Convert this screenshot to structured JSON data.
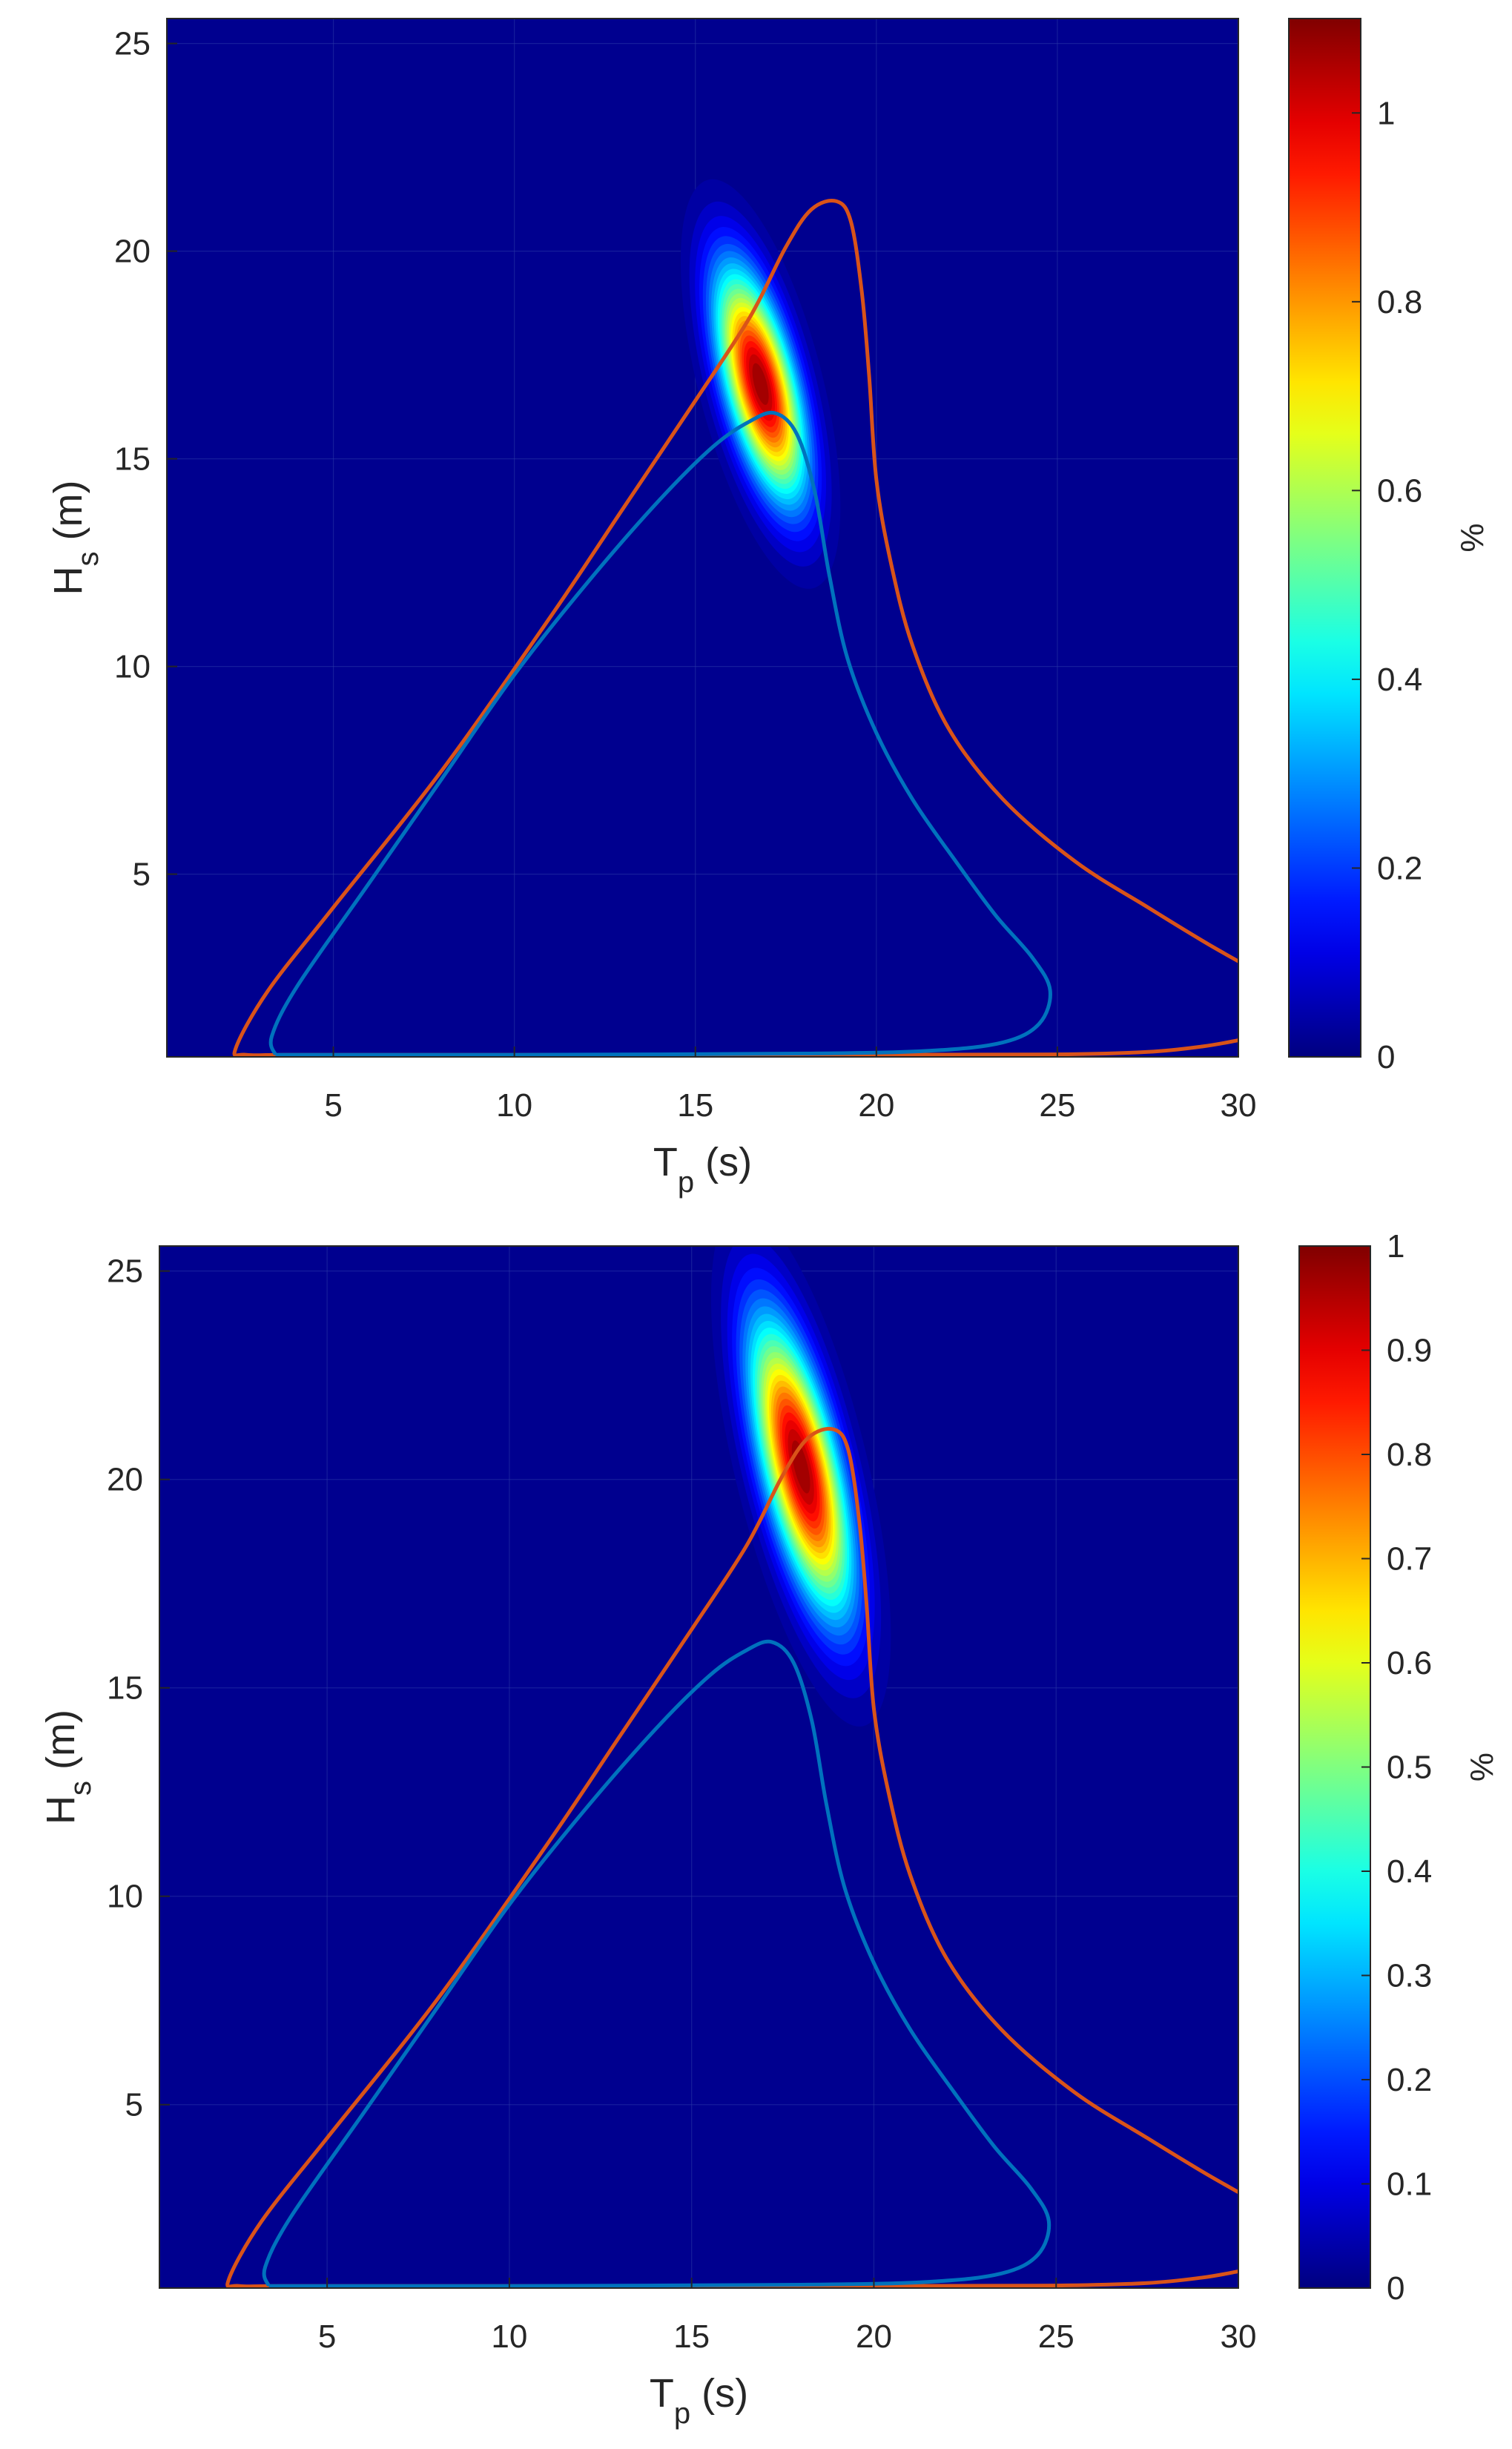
{
  "chart_data": [
    {
      "type": "heatmap",
      "colormap": "jet",
      "background_color": "#00008f",
      "xlabel": {
        "main": "T",
        "sub": "p",
        "unit": " (s)"
      },
      "ylabel": {
        "main": "H",
        "sub": "s",
        "unit": " (m)"
      },
      "xlim": [
        0.4,
        30
      ],
      "ylim": [
        0.6,
        25.6
      ],
      "xticks": [
        5,
        10,
        15,
        20,
        25,
        30
      ],
      "yticks": [
        5,
        10,
        15,
        20,
        25
      ],
      "colorbar": {
        "label": "%",
        "range": [
          0,
          1.1
        ],
        "ticks": [
          0,
          0.2,
          0.4,
          0.6,
          0.8,
          1
        ]
      },
      "peak": {
        "tp": 16.8,
        "hs": 16.8,
        "value": 1.1,
        "sigma_tp": 0.85,
        "sigma_hs": 1.9,
        "correlation": 0.6
      },
      "series": [
        {
          "color": "#d95319",
          "points": [
            [
              30.0,
              1.0
            ],
            [
              29.0,
              0.85
            ],
            [
              27.5,
              0.72
            ],
            [
              25.0,
              0.66
            ],
            [
              20.0,
              0.65
            ],
            [
              10.0,
              0.65
            ],
            [
              4.0,
              0.65
            ],
            [
              2.6,
              0.65
            ],
            [
              2.3,
              0.8
            ],
            [
              3.2,
              2.2
            ],
            [
              5.0,
              4.2
            ],
            [
              8.0,
              7.5
            ],
            [
              11.0,
              11.2
            ],
            [
              13.0,
              13.8
            ],
            [
              15.0,
              16.4
            ],
            [
              16.5,
              18.4
            ],
            [
              17.5,
              20.1
            ],
            [
              18.2,
              21.0
            ],
            [
              18.9,
              21.2
            ],
            [
              19.3,
              20.7
            ],
            [
              19.6,
              19.0
            ],
            [
              19.8,
              17.0
            ],
            [
              20.0,
              14.5
            ],
            [
              20.4,
              12.5
            ],
            [
              21.0,
              10.5
            ],
            [
              22.0,
              8.5
            ],
            [
              23.5,
              6.8
            ],
            [
              25.5,
              5.3
            ],
            [
              27.5,
              4.2
            ],
            [
              29.0,
              3.4
            ],
            [
              30.0,
              2.9
            ]
          ]
        },
        {
          "color": "#0072bd",
          "points": [
            [
              3.4,
              0.65
            ],
            [
              3.3,
              1.1
            ],
            [
              4.0,
              2.3
            ],
            [
              6.0,
              4.8
            ],
            [
              8.0,
              7.3
            ],
            [
              10.0,
              9.8
            ],
            [
              12.0,
              12.0
            ],
            [
              14.0,
              14.0
            ],
            [
              15.5,
              15.3
            ],
            [
              16.5,
              15.9
            ],
            [
              17.2,
              16.1
            ],
            [
              17.8,
              15.6
            ],
            [
              18.3,
              14.2
            ],
            [
              18.7,
              12.2
            ],
            [
              19.2,
              10.2
            ],
            [
              20.0,
              8.4
            ],
            [
              21.0,
              6.8
            ],
            [
              22.2,
              5.3
            ],
            [
              23.3,
              4.0
            ],
            [
              24.3,
              3.0
            ],
            [
              24.8,
              2.2
            ],
            [
              24.5,
              1.4
            ],
            [
              23.5,
              0.95
            ],
            [
              21.5,
              0.75
            ],
            [
              18.0,
              0.68
            ],
            [
              10.0,
              0.65
            ],
            [
              5.0,
              0.65
            ],
            [
              3.4,
              0.65
            ]
          ]
        }
      ]
    },
    {
      "type": "heatmap",
      "colormap": "jet",
      "background_color": "#00008f",
      "xlabel": {
        "main": "T",
        "sub": "p",
        "unit": " (s)"
      },
      "ylabel": {
        "main": "H",
        "sub": "s",
        "unit": " (m)"
      },
      "xlim": [
        0.4,
        30
      ],
      "ylim": [
        0.6,
        25.6
      ],
      "xticks": [
        5,
        10,
        15,
        20,
        25,
        30
      ],
      "yticks": [
        5,
        10,
        15,
        20,
        25
      ],
      "colorbar": {
        "label": "%",
        "range": [
          0,
          1
        ],
        "ticks": [
          0,
          0.1,
          0.2,
          0.3,
          0.4,
          0.5,
          0.6,
          0.7,
          0.8,
          0.9,
          1
        ]
      },
      "peak": {
        "tp": 18.0,
        "hs": 20.3,
        "value": 1.0,
        "sigma_tp": 0.95,
        "sigma_hs": 2.4,
        "correlation": 0.65
      },
      "series": [
        {
          "color": "#d95319",
          "points": [
            [
              30.0,
              1.0
            ],
            [
              29.0,
              0.85
            ],
            [
              27.5,
              0.72
            ],
            [
              25.0,
              0.66
            ],
            [
              20.0,
              0.65
            ],
            [
              10.0,
              0.65
            ],
            [
              4.0,
              0.65
            ],
            [
              2.6,
              0.65
            ],
            [
              2.3,
              0.8
            ],
            [
              3.2,
              2.2
            ],
            [
              5.0,
              4.2
            ],
            [
              8.0,
              7.5
            ],
            [
              11.0,
              11.2
            ],
            [
              13.0,
              13.8
            ],
            [
              15.0,
              16.4
            ],
            [
              16.5,
              18.4
            ],
            [
              17.5,
              20.1
            ],
            [
              18.2,
              21.0
            ],
            [
              18.9,
              21.2
            ],
            [
              19.3,
              20.7
            ],
            [
              19.6,
              19.0
            ],
            [
              19.8,
              17.0
            ],
            [
              20.0,
              14.5
            ],
            [
              20.4,
              12.5
            ],
            [
              21.0,
              10.5
            ],
            [
              22.0,
              8.5
            ],
            [
              23.5,
              6.8
            ],
            [
              25.5,
              5.3
            ],
            [
              27.5,
              4.2
            ],
            [
              29.0,
              3.4
            ],
            [
              30.0,
              2.9
            ]
          ]
        },
        {
          "color": "#0072bd",
          "points": [
            [
              3.4,
              0.65
            ],
            [
              3.3,
              1.1
            ],
            [
              4.0,
              2.3
            ],
            [
              6.0,
              4.8
            ],
            [
              8.0,
              7.3
            ],
            [
              10.0,
              9.8
            ],
            [
              12.0,
              12.0
            ],
            [
              14.0,
              14.0
            ],
            [
              15.5,
              15.3
            ],
            [
              16.5,
              15.9
            ],
            [
              17.2,
              16.1
            ],
            [
              17.8,
              15.6
            ],
            [
              18.3,
              14.2
            ],
            [
              18.7,
              12.2
            ],
            [
              19.2,
              10.2
            ],
            [
              20.0,
              8.4
            ],
            [
              21.0,
              6.8
            ],
            [
              22.2,
              5.3
            ],
            [
              23.3,
              4.0
            ],
            [
              24.3,
              3.0
            ],
            [
              24.8,
              2.2
            ],
            [
              24.5,
              1.4
            ],
            [
              23.5,
              0.95
            ],
            [
              21.5,
              0.75
            ],
            [
              18.0,
              0.68
            ],
            [
              10.0,
              0.65
            ],
            [
              5.0,
              0.65
            ],
            [
              3.4,
              0.65
            ]
          ]
        }
      ]
    }
  ]
}
